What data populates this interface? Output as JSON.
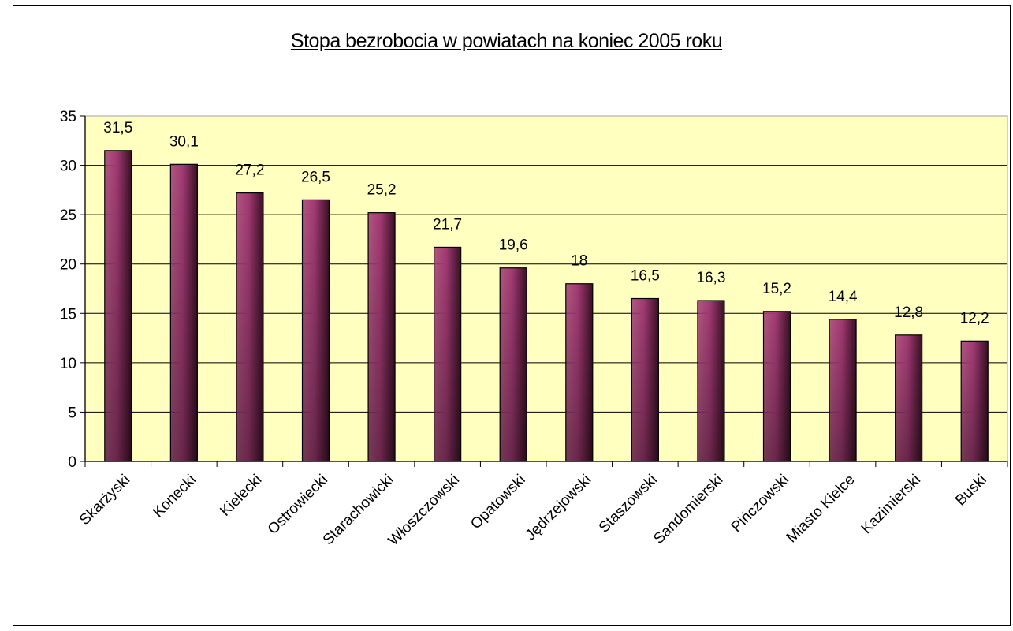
{
  "colors": {
    "plot_background": "#FFFFC0",
    "plot_border": "#C0C0C0",
    "bar_light": "#A23A74",
    "bar_dark": "#3A1024"
  },
  "chart_data": {
    "type": "bar",
    "title": "Stopa bezrobocia w powiatach na koniec 2005 roku",
    "categories": [
      "Skarżyski",
      "Konecki",
      "Kielecki",
      "Ostrowiecki",
      "Starachowicki",
      "Włoszczowski",
      "Opatowski",
      "Jędrzejowski",
      "Staszowski",
      "Sandomierski",
      "Pińczowski",
      "Miasto Kielce",
      "Kazimierski",
      "Buski"
    ],
    "values": [
      31.5,
      30.1,
      27.2,
      26.5,
      25.2,
      21.7,
      19.6,
      18,
      16.5,
      16.3,
      15.2,
      14.4,
      12.8,
      12.2
    ],
    "data_labels": [
      "31,5",
      "30,1",
      "27,2",
      "26,5",
      "25,2",
      "21,7",
      "19,6",
      "18",
      "16,5",
      "16,3",
      "15,2",
      "14,4",
      "12,8",
      "12,2"
    ],
    "ylim": [
      0,
      35
    ],
    "yticks": [
      0,
      5,
      10,
      15,
      20,
      25,
      30,
      35
    ],
    "xlabel": "",
    "ylabel": "",
    "grid": true,
    "legend": "none"
  }
}
